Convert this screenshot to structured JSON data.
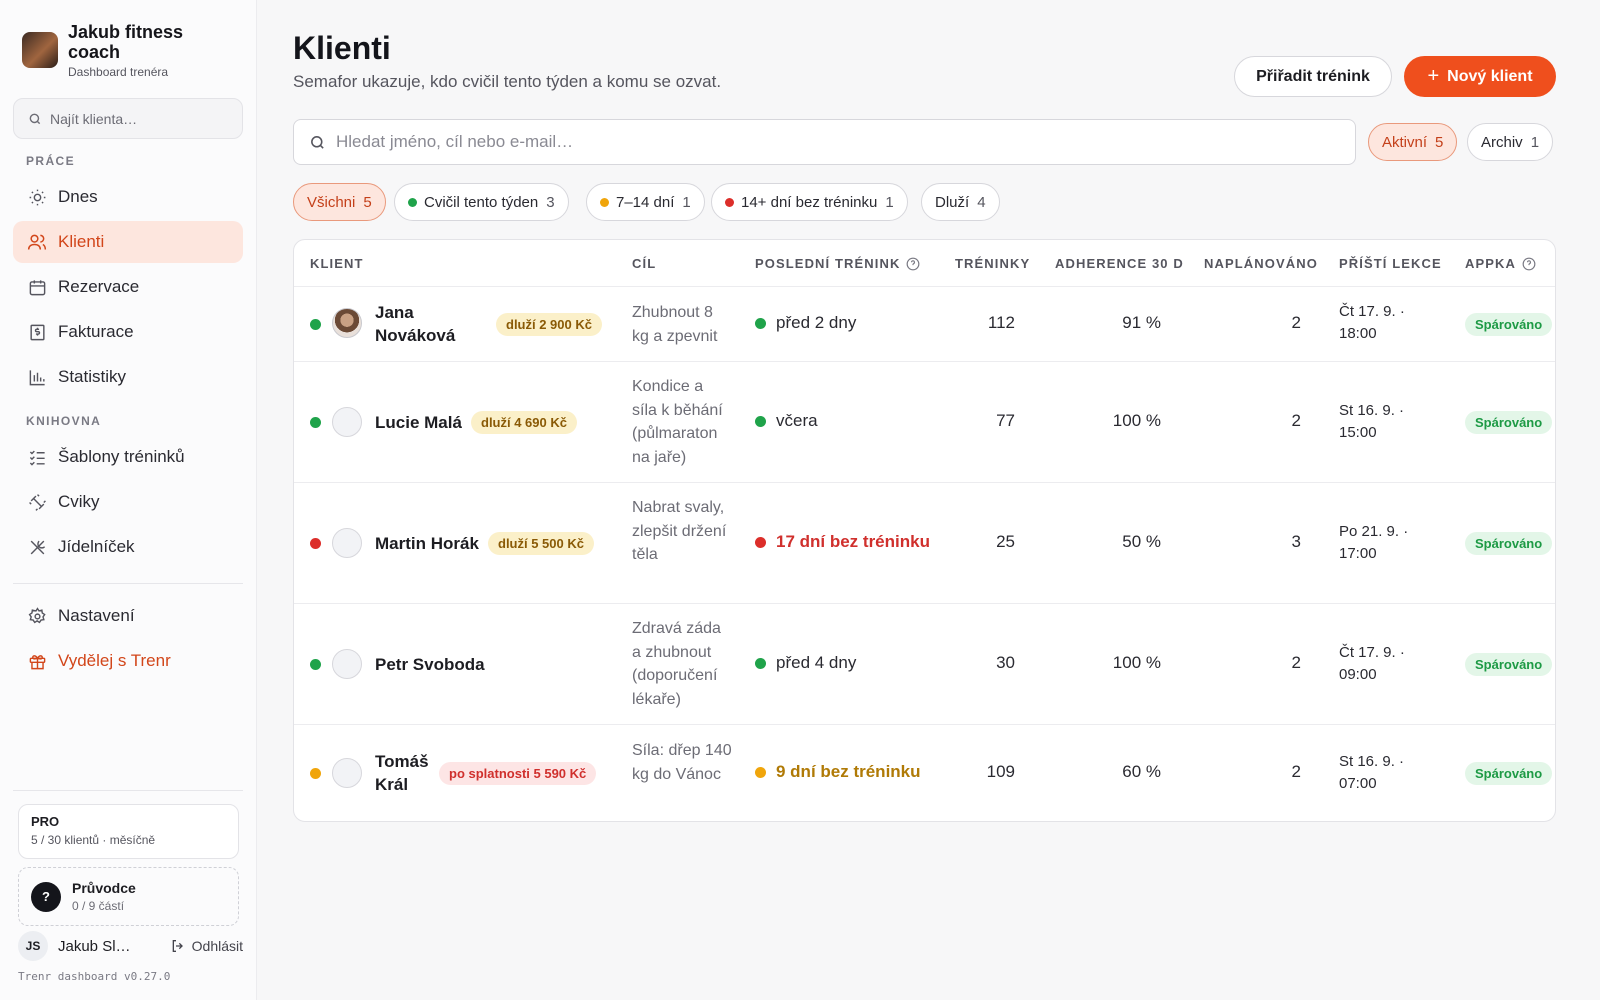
{
  "brand": {
    "name": "Jakub fitness coach",
    "subtitle": "Dashboard trenéra"
  },
  "sidebar": {
    "search_placeholder": "Najít klienta…",
    "section_work": "PRÁCE",
    "section_library": "KNIHOVNA",
    "items": [
      {
        "label": "Dnes",
        "icon": "sun-icon"
      },
      {
        "label": "Klienti",
        "icon": "users-icon",
        "active": true
      },
      {
        "label": "Rezervace",
        "icon": "calendar-icon"
      },
      {
        "label": "Fakturace",
        "icon": "invoice-icon"
      },
      {
        "label": "Statistiky",
        "icon": "bar-chart-icon"
      },
      {
        "label": "Šablony tréninků",
        "icon": "checklist-icon"
      },
      {
        "label": "Cviky",
        "icon": "dumbbell-icon"
      },
      {
        "label": "Jídelníček",
        "icon": "utensils-icon"
      },
      {
        "label": "Nastavení",
        "icon": "gear-icon"
      },
      {
        "label": "Vydělej s Trenr",
        "icon": "gift-icon"
      }
    ],
    "plan": {
      "title": "PRO",
      "detail": "5 / 30 klientů · měsíčně"
    },
    "guide": {
      "mark": "?",
      "title": "Průvodce",
      "progress": "0 / 9 částí"
    },
    "user": {
      "initials": "JS",
      "name": "Jakub Sl…",
      "logout": "Odhlásit"
    },
    "version": "Trenr dashboard v0.27.0"
  },
  "header": {
    "title": "Klienti",
    "subtitle": "Semafor ukazuje, kdo cvičil tento týden a komu se ozvat.",
    "assign_button": "Přiřadit trénink",
    "new_client_button": "Nový klient"
  },
  "search": {
    "placeholder": "Hledat jméno, cíl nebo e-mail…"
  },
  "scope_tabs": [
    {
      "label": "Aktivní",
      "count": "5",
      "selected": true
    },
    {
      "label": "Archiv",
      "count": "1",
      "selected": false
    }
  ],
  "filters": [
    {
      "label": "Všichni",
      "count": "5",
      "selected": true,
      "dot": null
    },
    {
      "label": "Cvičil tento týden",
      "count": "3",
      "selected": false,
      "dot": "#1fa34a"
    },
    {
      "label": "7–14 dní",
      "count": "1",
      "selected": false,
      "dot": "#f0a50b"
    },
    {
      "label": "14+ dní bez tréninku",
      "count": "1",
      "selected": false,
      "dot": "#dc2e2a"
    },
    {
      "label": "Dluží",
      "count": "4",
      "selected": false,
      "dot": null
    }
  ],
  "colors": {
    "accent": "#ef4f1d",
    "green": "#1fa34a",
    "amber": "#f0a50b",
    "red": "#dc2e2a"
  },
  "table": {
    "columns": [
      "KLIENT",
      "CÍL",
      "POSLEDNÍ TRÉNINK",
      "TRÉNINKY",
      "ADHERENCE 30 D",
      "NAPLÁNOVÁNO",
      "PŘÍŠTÍ LEKCE",
      "APPKA"
    ],
    "rows": [
      {
        "status": "green",
        "name_line1": "Jana",
        "name_line2": "Nováková",
        "debt": "dluží 2 900 Kč",
        "overdue": false,
        "goal": "Zhubnout 8 kg a zpevnit",
        "last": "před 2 dny",
        "last_tone": "normal",
        "sessions": "112",
        "adherence": "91 %",
        "planned": "2",
        "next_line1": "Čt 17. 9. ·",
        "next_line2": "18:00",
        "app": "Spárováno"
      },
      {
        "status": "green",
        "name_line1": "Lucie Malá",
        "name_line2": "",
        "debt": "dluží 4 690 Kč",
        "overdue": false,
        "goal": "Kondice a síla k běhání (půlmaraton na jaře)",
        "last": "včera",
        "last_tone": "normal",
        "sessions": "77",
        "adherence": "100 %",
        "planned": "2",
        "next_line1": "St 16. 9. ·",
        "next_line2": "15:00",
        "app": "Spárováno"
      },
      {
        "status": "red",
        "name_line1": "Martin Horák",
        "name_line2": "",
        "debt": "dluží 5 500 Kč",
        "overdue": false,
        "goal": "Nabrat svaly, zlepšit držení těla",
        "last": "17 dní bez tréninku",
        "last_tone": "red",
        "sessions": "25",
        "adherence": "50 %",
        "planned": "3",
        "next_line1": "Po 21. 9. ·",
        "next_line2": "17:00",
        "app": "Spárováno"
      },
      {
        "status": "green",
        "name_line1": "Petr Svoboda",
        "name_line2": "",
        "debt": "",
        "overdue": false,
        "goal": "Zdravá záda a zhubnout (doporučení lékaře)",
        "last": "před 4 dny",
        "last_tone": "normal",
        "sessions": "30",
        "adherence": "100 %",
        "planned": "2",
        "next_line1": "Čt 17. 9. ·",
        "next_line2": "09:00",
        "app": "Spárováno"
      },
      {
        "status": "amber",
        "name_line1": "Tomáš",
        "name_line2": "Král",
        "debt": "po splatnosti 5 590 Kč",
        "overdue": true,
        "goal": "Síla: dřep 140 kg do Vánoc",
        "last": "9 dní bez tréninku",
        "last_tone": "amber",
        "sessions": "109",
        "adherence": "60 %",
        "planned": "2",
        "next_line1": "St 16. 9. ·",
        "next_line2": "07:00",
        "app": "Spárováno"
      }
    ]
  }
}
